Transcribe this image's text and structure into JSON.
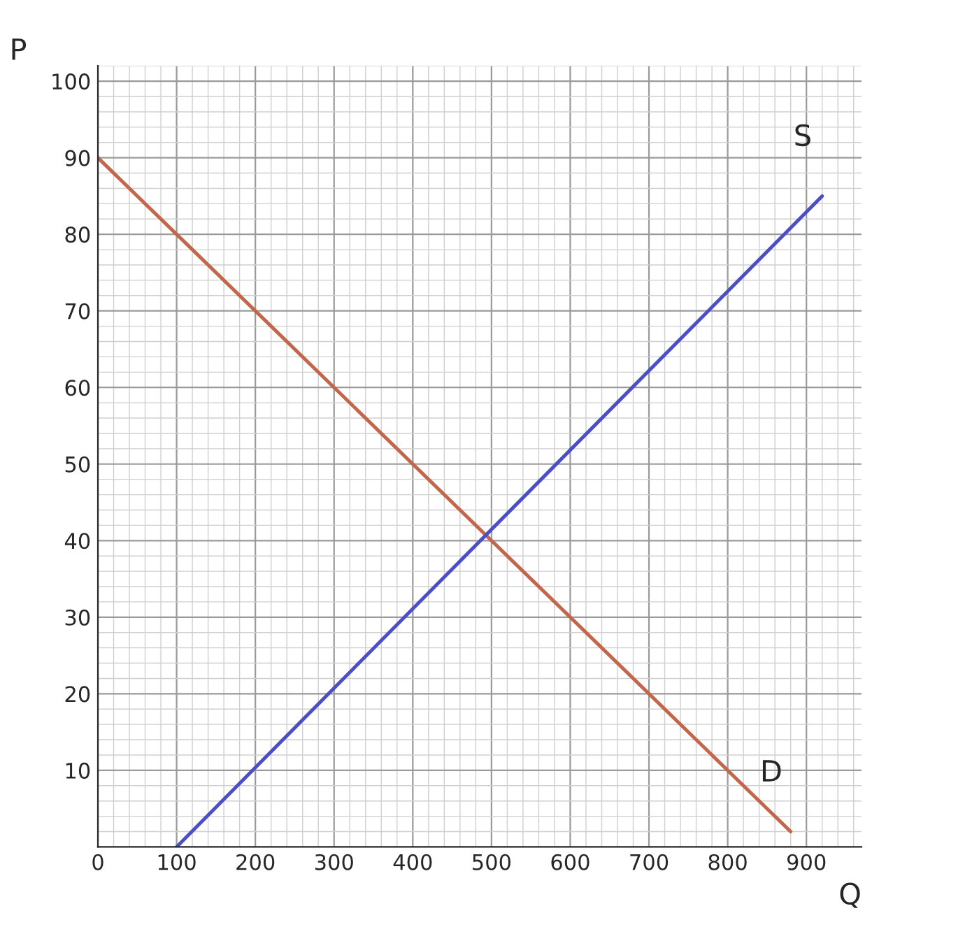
{
  "chart_data": {
    "type": "line",
    "xlabel": "Q",
    "ylabel": "P",
    "series": [
      {
        "name": "D",
        "color": "#c2674c",
        "x": [
          0,
          880
        ],
        "values": [
          90,
          2
        ]
      },
      {
        "name": "S",
        "color": "#4b4ec4",
        "x": [
          100,
          920
        ],
        "values": [
          0,
          85
        ]
      }
    ],
    "xlim": [
      0,
      970
    ],
    "ylim": [
      0,
      102
    ],
    "xticks": [
      0,
      100,
      200,
      300,
      400,
      500,
      600,
      700,
      800,
      900
    ],
    "yticks": [
      10,
      20,
      30,
      40,
      50,
      60,
      70,
      80,
      90,
      100
    ],
    "grid": true,
    "marker": "none",
    "line_style": "solid"
  }
}
